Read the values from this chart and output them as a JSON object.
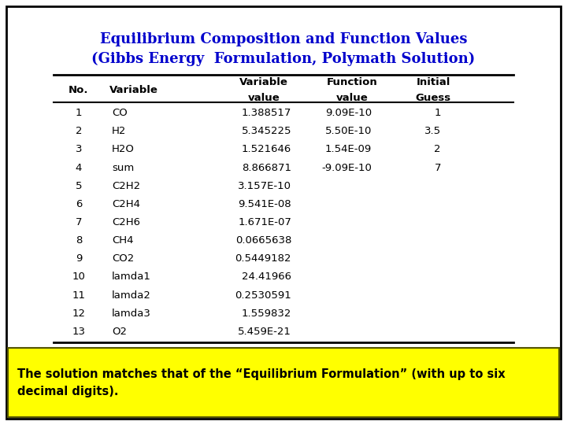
{
  "title_line1": "Equilibrium Composition and Function Values",
  "title_line2": "(Gibbs Energy  Formulation, Polymath Solution)",
  "title_color": "#0000CC",
  "rows": [
    [
      "1",
      "CO",
      "1.388517",
      "9.09E-10",
      "1"
    ],
    [
      "2",
      "H2",
      "5.345225",
      "5.50E-10",
      "3.5"
    ],
    [
      "3",
      "H2O",
      "1.521646",
      "1.54E-09",
      "2"
    ],
    [
      "4",
      "sum",
      "8.866871",
      "-9.09E-10",
      "7"
    ],
    [
      "5",
      "C2H2",
      "3.157E-10",
      "",
      ""
    ],
    [
      "6",
      "C2H4",
      "9.541E-08",
      "",
      ""
    ],
    [
      "7",
      "C2H6",
      "1.671E-07",
      "",
      ""
    ],
    [
      "8",
      "CH4",
      "0.0665638",
      "",
      ""
    ],
    [
      "9",
      "CO2",
      "0.5449182",
      "",
      ""
    ],
    [
      "10",
      "lamda1",
      "24.41966",
      "",
      ""
    ],
    [
      "11",
      "lamda2",
      "0.2530591",
      "",
      ""
    ],
    [
      "12",
      "lamda3",
      "1.559832",
      "",
      ""
    ],
    [
      "13",
      "O2",
      "5.459E-21",
      "",
      ""
    ]
  ],
  "footer_text": "The solution matches that of the “Equilibrium Formulation” (with up to six\ndecimal digits).",
  "footer_bg": "#FFFF00",
  "footer_text_color": "#000000",
  "bg_color": "#FFFFFF",
  "border_color": "#000000",
  "table_text_color": "#000000",
  "title_fontsize": 13,
  "table_fontsize": 9.5,
  "footer_fontsize": 10.5
}
